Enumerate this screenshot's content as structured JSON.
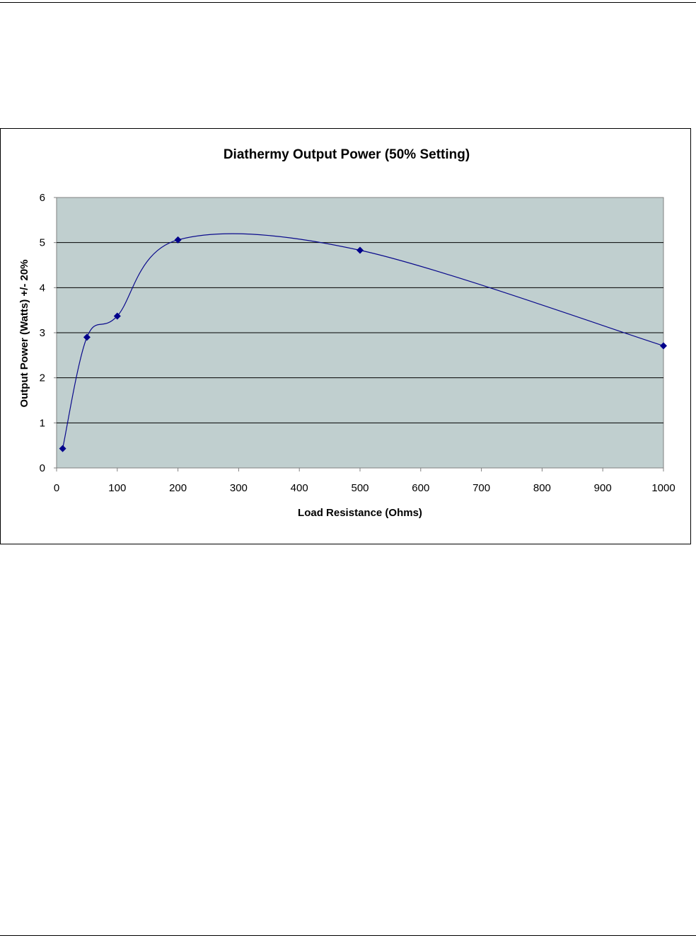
{
  "chart_data": {
    "type": "scatter",
    "title": "Diathermy Output Power (50% Setting)",
    "xlabel": "Load Resistance (Ohms)",
    "ylabel": "Output Power (Watts) +/- 20%",
    "xlim": [
      0,
      1000
    ],
    "ylim": [
      0,
      6
    ],
    "x_ticks": [
      0,
      100,
      200,
      300,
      400,
      500,
      600,
      700,
      800,
      900,
      1000
    ],
    "y_ticks": [
      0,
      1,
      2,
      3,
      4,
      5,
      6
    ],
    "grid": "horizontal",
    "line": "smooth",
    "series": [
      {
        "x": [
          10,
          50,
          100,
          200,
          500,
          1000
        ],
        "y": [
          0.43,
          2.9,
          3.37,
          5.06,
          4.83,
          2.71
        ]
      }
    ],
    "colors": {
      "plot_background": "#c0cfcf",
      "series": "#0a0a8c",
      "marker": "#00008b"
    }
  }
}
